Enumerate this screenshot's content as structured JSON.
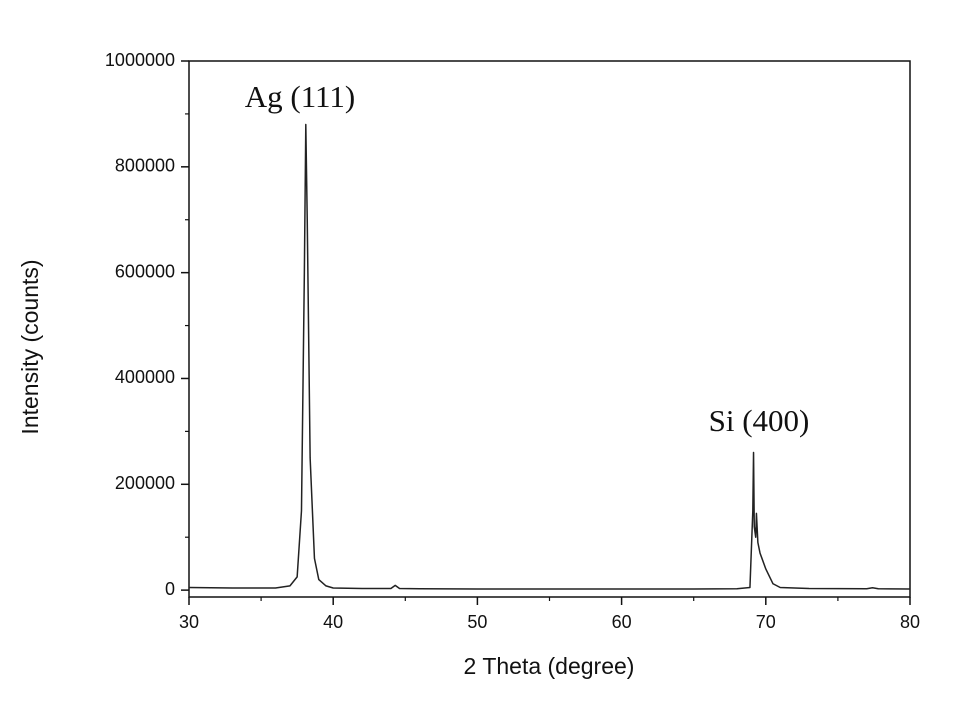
{
  "chart_data": {
    "type": "line",
    "x_label": "2 Theta (degree)",
    "y_label": "Intensity (counts)",
    "annotations": [
      "Ag (111)",
      "Si (400)"
    ],
    "x": [
      30,
      33,
      36,
      37,
      37.5,
      37.8,
      38.0,
      38.1,
      38.2,
      38.4,
      38.7,
      39,
      39.5,
      40,
      42,
      44,
      44.3,
      44.6,
      46,
      50,
      55,
      60,
      65,
      68,
      68.9,
      69.1,
      69.15,
      69.2,
      69.3,
      69.35,
      69.45,
      69.6,
      70,
      70.5,
      71,
      73,
      77,
      77.4,
      77.8,
      80
    ],
    "series": [
      {
        "color": "#222222",
        "values": [
          5000,
          4000,
          4000,
          8000,
          25000,
          150000,
          600000,
          880000,
          700000,
          250000,
          60000,
          20000,
          8000,
          4000,
          3000,
          3000,
          9000,
          3000,
          2500,
          2000,
          2000,
          2000,
          2000,
          2500,
          5000,
          150000,
          260000,
          120000,
          100000,
          145000,
          90000,
          70000,
          40000,
          12000,
          5000,
          3000,
          2500,
          4500,
          2500,
          2000
        ]
      }
    ],
    "xlim": [
      30,
      80
    ],
    "xticks": [
      30,
      40,
      50,
      60,
      70,
      80
    ],
    "ylim": [
      -13000,
      1000000
    ],
    "yticks": [
      0,
      200000,
      400000,
      600000,
      800000,
      1000000
    ]
  }
}
